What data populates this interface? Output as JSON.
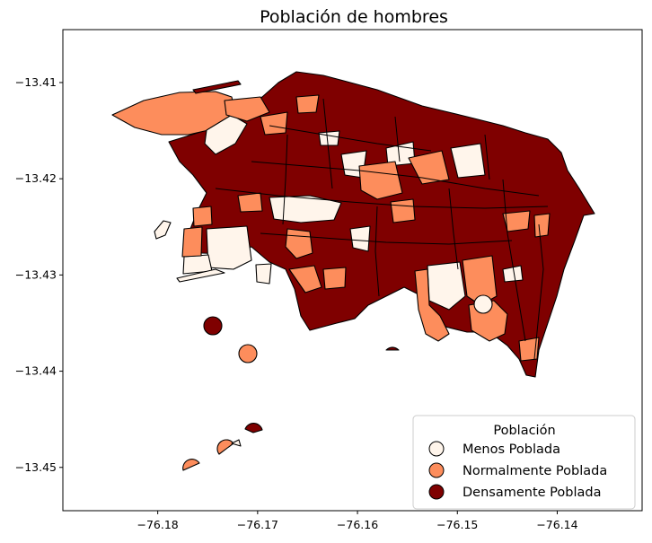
{
  "title": "Población de hombres",
  "colors": {
    "menos": "#fff5eb",
    "normal": "#fd8d5c",
    "densa": "#7f0000",
    "outline": "#000000"
  },
  "legend": {
    "title": "Población",
    "placement": "bottom-right",
    "items": [
      {
        "label": "Menos Poblada",
        "color": "#fff5eb"
      },
      {
        "label": "Normalmente Poblada",
        "color": "#fd8d5c"
      },
      {
        "label": "Densamente Poblada",
        "color": "#7f0000"
      }
    ]
  },
  "axes": {
    "xticks": [
      "−76.18",
      "−76.17",
      "−76.16",
      "−76.15",
      "−76.14"
    ],
    "xtick_values": [
      -76.18,
      -76.17,
      -76.16,
      -76.15,
      -76.14
    ],
    "yticks": [
      "−13.41",
      "−13.42",
      "−13.43",
      "−13.44",
      "−13.45"
    ],
    "ytick_values": [
      -13.41,
      -13.42,
      -13.43,
      -13.44,
      -13.45
    ],
    "xlim": [
      -76.1895,
      -76.1315
    ],
    "ylim": [
      -13.4545,
      -13.4045
    ]
  },
  "chart_data": {
    "type": "choropleth",
    "title": "Población de hombres",
    "categories": [
      "Menos Poblada",
      "Normalmente Poblada",
      "Densamente Poblada"
    ],
    "xlim": [
      -76.1895,
      -76.1315
    ],
    "ylim": [
      -13.4545,
      -13.4045
    ],
    "grid": false,
    "legend_placement": "bottom-right"
  }
}
